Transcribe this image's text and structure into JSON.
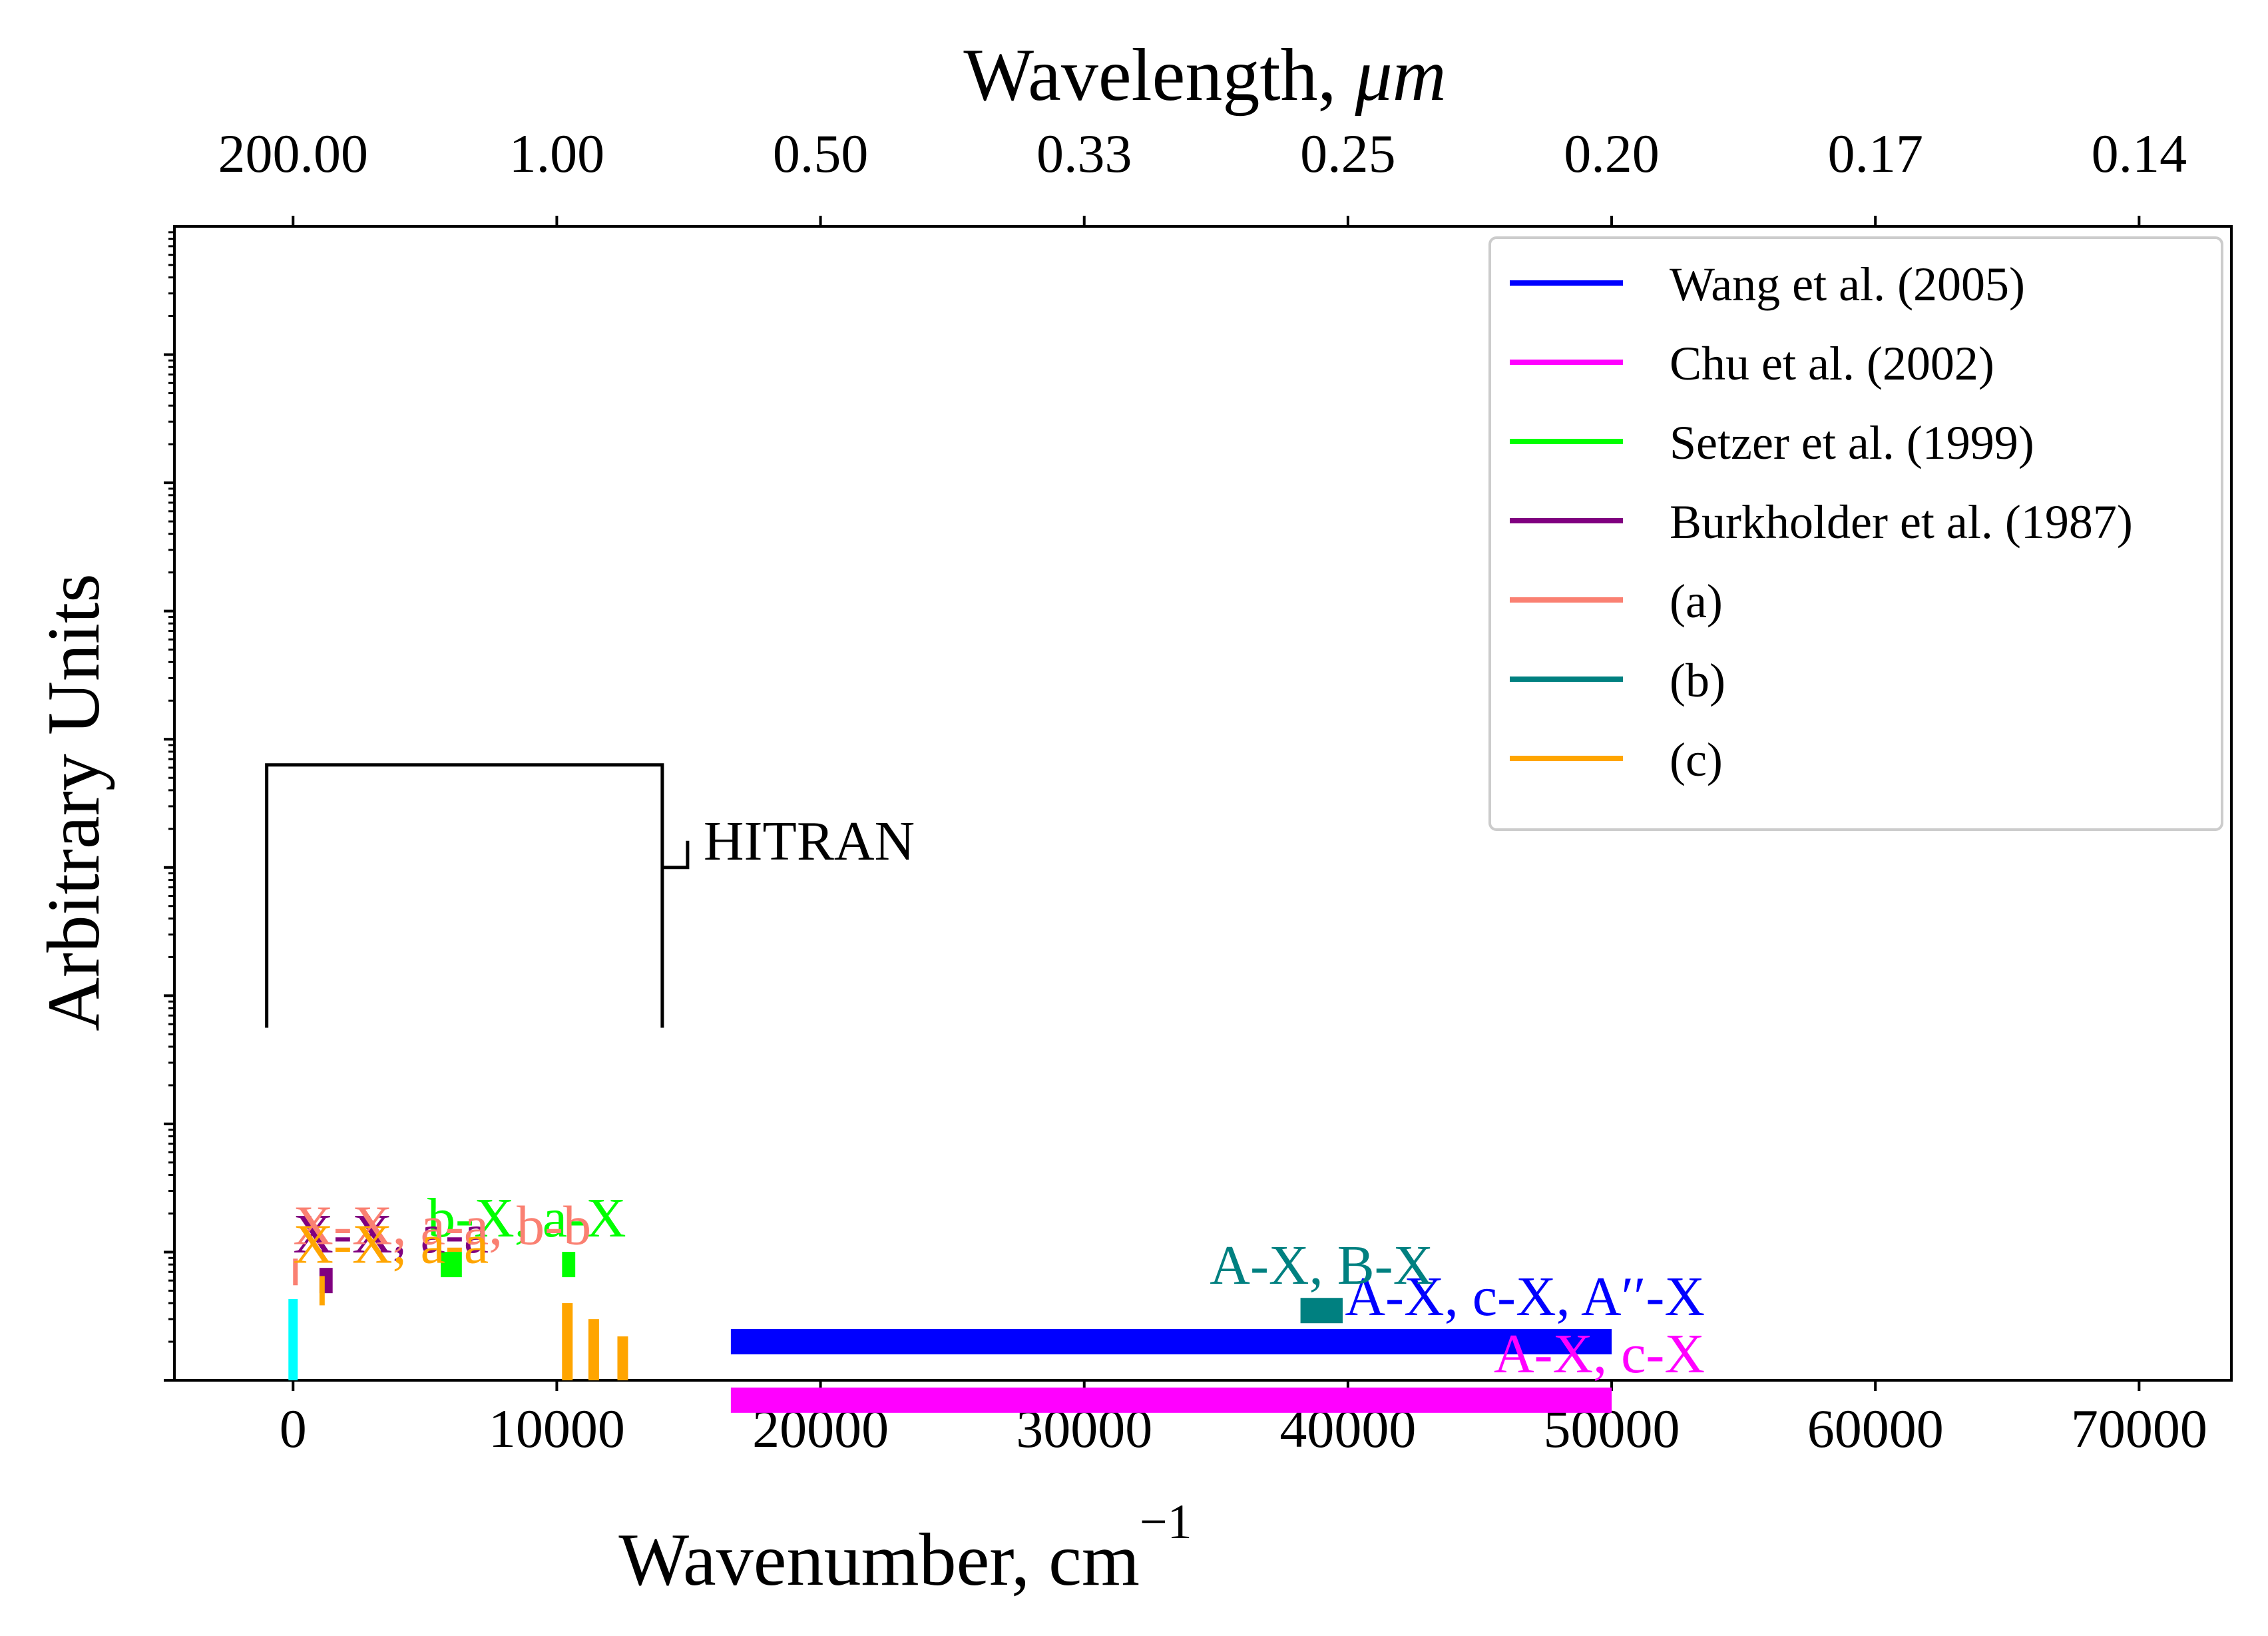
{
  "chart_data": {
    "type": "bar",
    "xlabel": "Wavenumber, cm",
    "xlabel_sup": "−1",
    "ylabel": "Arbitrary Units",
    "top_xlabel": "Wavelength, ",
    "top_xlabel_unit": "μm",
    "xlim": [
      -4500,
      73500
    ],
    "yscale": "log",
    "ylim_decades": [
      0,
      9
    ],
    "x_ticks": [
      0,
      10000,
      20000,
      30000,
      40000,
      50000,
      60000,
      70000
    ],
    "x_tick_labels": [
      "0",
      "10000",
      "20000",
      "30000",
      "40000",
      "50000",
      "60000",
      "70000"
    ],
    "top_ticks": [
      {
        "wavenumber": 0,
        "label": "200.00"
      },
      {
        "wavenumber": 10000,
        "label": "1.00"
      },
      {
        "wavenumber": 20000,
        "label": "0.50"
      },
      {
        "wavenumber": 30000,
        "label": "0.33"
      },
      {
        "wavenumber": 40000,
        "label": "0.25"
      },
      {
        "wavenumber": 50000,
        "label": "0.20"
      },
      {
        "wavenumber": 60000,
        "label": "0.17"
      },
      {
        "wavenumber": 70000,
        "label": "0.14"
      }
    ],
    "legend": {
      "location": "upper right",
      "entries": [
        {
          "label": "Wang et al. (2005)",
          "color": "#0000ff"
        },
        {
          "label": "Chu et al. (2002)",
          "color": "#ff00ff"
        },
        {
          "label": "Setzer et al. (1999)",
          "color": "#00ff00"
        },
        {
          "label": "Burkholder et al. (1987)",
          "color": "#800080"
        },
        {
          "label": "(a)",
          "color": "#fa8072"
        },
        {
          "label": "(b)",
          "color": "#008080"
        },
        {
          "label": "(c)",
          "color": "#ffa500"
        }
      ]
    },
    "bands": [
      {
        "name": "wang-2005",
        "label": "A-X, c-X, A′′-X",
        "color": "#0000ff",
        "ranges": [
          [
            16600,
            50000
          ]
        ],
        "level": 2.0
      },
      {
        "name": "chu-2002",
        "label": "A-X, c-X",
        "color": "#ff00ff",
        "ranges": [
          [
            16600,
            50000
          ]
        ],
        "level": 0.7
      },
      {
        "name": "setzer-1999",
        "label": "b-X, a-X",
        "color": "#00ff00",
        "ranges": [
          [
            5600,
            6400
          ],
          [
            10200,
            10700
          ]
        ],
        "level": 8.0
      },
      {
        "name": "burkholder-1987",
        "label": "X-X, a-a",
        "color": "#800080",
        "ranges": [
          [
            1000,
            1500
          ]
        ],
        "level": 6.0
      },
      {
        "name": "ref-a",
        "label": "X-X, a-a, b-b",
        "color": "#fa8072",
        "ranges": [
          [
            0,
            150
          ]
        ],
        "level": 7.0
      },
      {
        "name": "ref-b",
        "label": "A-X, B-X",
        "color": "#008080",
        "ranges": [
          [
            38200,
            39800
          ]
        ],
        "level": 3.5
      },
      {
        "name": "ref-c",
        "label": "X-X, a-a",
        "color": "#ffa500",
        "ranges": [
          [
            1000,
            1200
          ]
        ],
        "level": 5.0
      }
    ],
    "hitran": {
      "label": "HITRAN",
      "range": [
        -1000,
        14000
      ],
      "series": [
        {
          "name": "hitran-cyan",
          "color": "#00ffff",
          "x": [
            0
          ],
          "values": [
            4.3
          ]
        },
        {
          "name": "hitran-black",
          "color": "#000000",
          "x": [
            5800
          ],
          "values": [
            1.0
          ]
        },
        {
          "name": "hitran-orange",
          "color": "#ffa500",
          "x": [
            9300,
            10400,
            11400,
            12500
          ],
          "values": [
            0.6,
            4.0,
            3.0,
            2.2
          ]
        }
      ]
    }
  }
}
